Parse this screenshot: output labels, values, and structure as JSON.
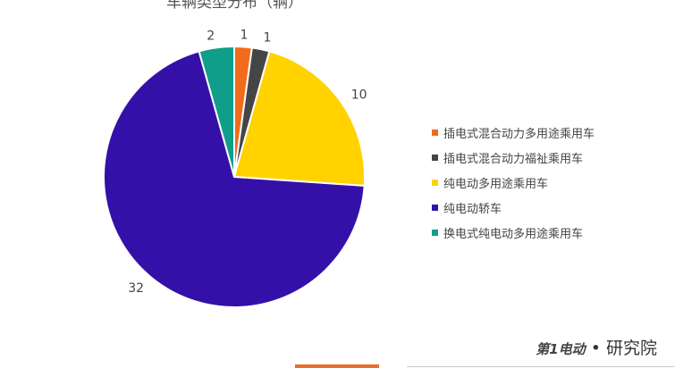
{
  "chart_data": {
    "type": "pie",
    "title": "车辆类型分布（辆）",
    "categories": [
      "插电式混合动力多用途乘用车",
      "插电式混合动力福祉乘用车",
      "纯电动多用途乘用车",
      "纯电动轿车",
      "换电式纯电动多用途乘用车"
    ],
    "values": [
      1,
      1,
      10,
      32,
      2
    ],
    "colors": [
      "#f26b1d",
      "#454545",
      "#ffd200",
      "#3510a8",
      "#0f9e8a"
    ],
    "legend": "right"
  },
  "brand": {
    "logo": "第1电动",
    "sep": "•",
    "name": "研究院"
  }
}
